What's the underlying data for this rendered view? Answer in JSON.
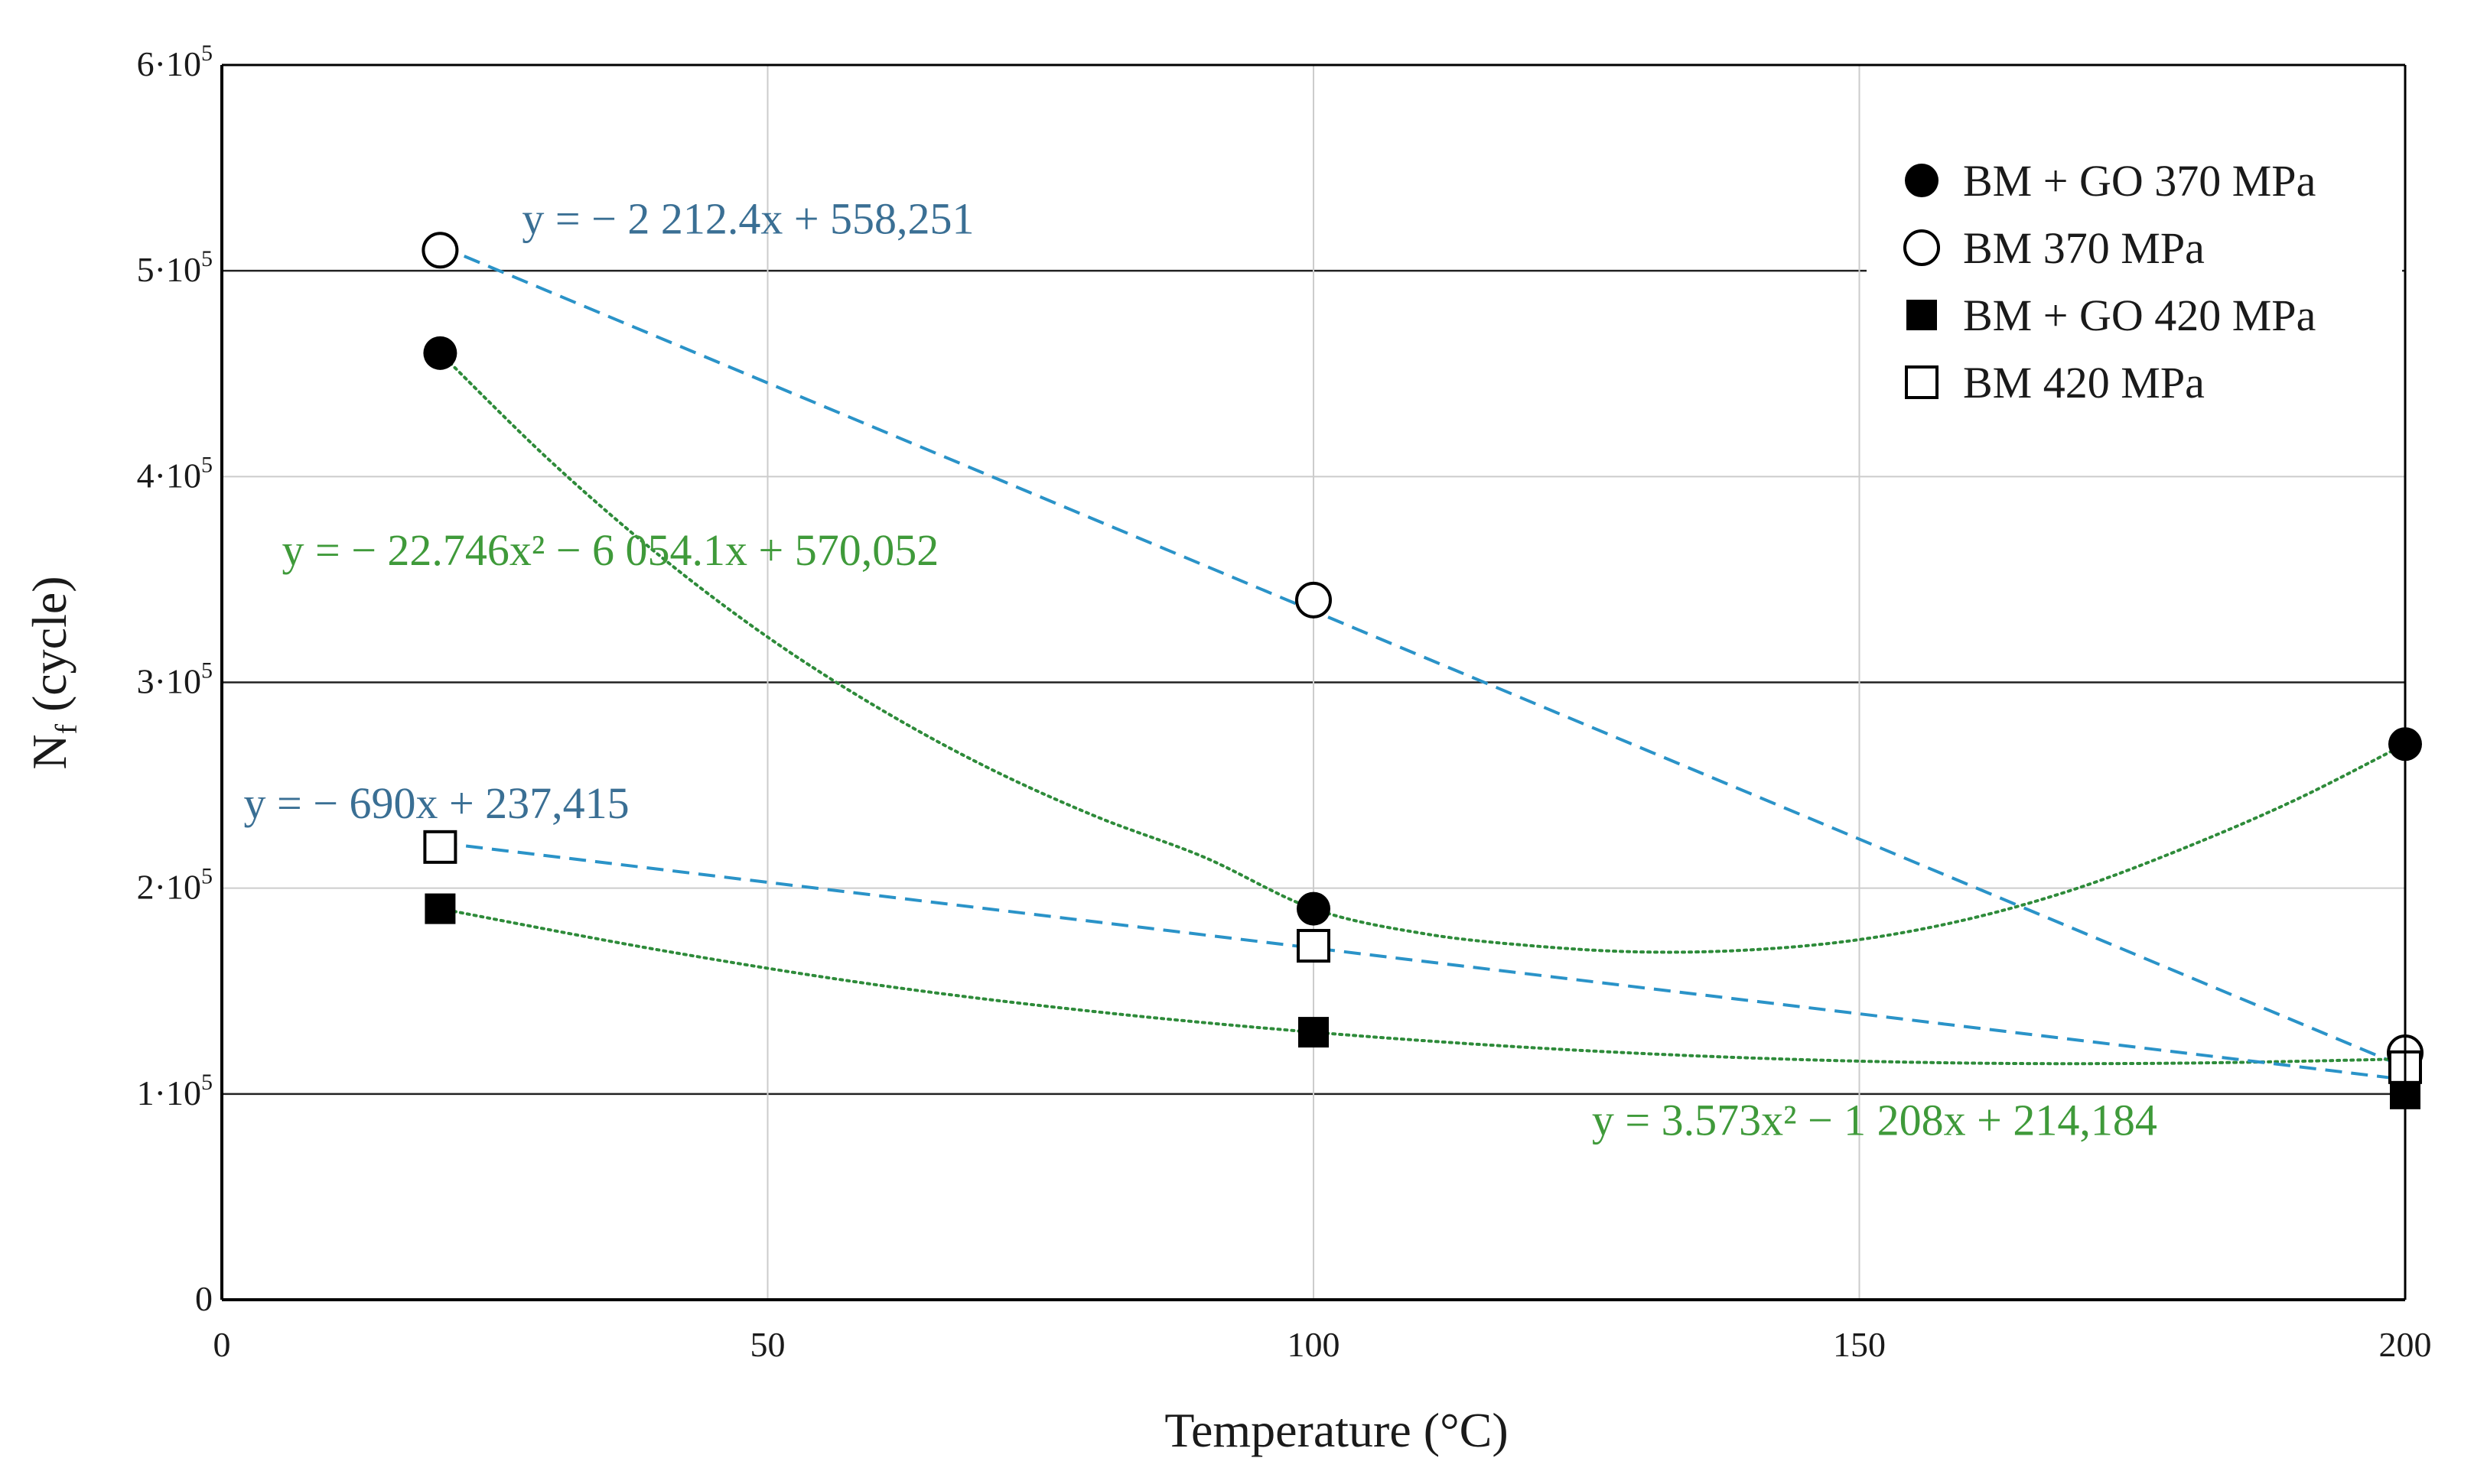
{
  "chart_data": {
    "type": "scatter",
    "xlabel": "Temperature (°C)",
    "ylabel": "N",
    "ylabel_sub": "f",
    "ylabel_suffix": " (cycle)",
    "xlim": [
      0,
      200
    ],
    "ylim": [
      0,
      600000
    ],
    "x_ticks": [
      {
        "value": 0,
        "label": "0"
      },
      {
        "value": 50,
        "label": "50"
      },
      {
        "value": 100,
        "label": "100"
      },
      {
        "value": 150,
        "label": "150"
      },
      {
        "value": 200,
        "label": "200"
      }
    ],
    "y_ticks": [
      {
        "value": 0,
        "label": "0",
        "exp": ""
      },
      {
        "value": 100000,
        "label": "1·10",
        "exp": "5"
      },
      {
        "value": 200000,
        "label": "2·10",
        "exp": "5"
      },
      {
        "value": 300000,
        "label": "3·10",
        "exp": "5"
      },
      {
        "value": 400000,
        "label": "4·10",
        "exp": "5"
      },
      {
        "value": 500000,
        "label": "5·10",
        "exp": "5"
      },
      {
        "value": 600000,
        "label": "6·10",
        "exp": "5"
      }
    ],
    "grid": {
      "horizontal": true,
      "vertical": true
    },
    "legend_position": "top-right",
    "series": [
      {
        "name": "BM + GO 370 MPa",
        "marker": "filled-circle",
        "x": [
          20,
          100,
          200
        ],
        "y": [
          460000,
          190000,
          270000
        ]
      },
      {
        "name": "BM 370 MPa",
        "marker": "open-circle",
        "x": [
          20,
          100,
          200
        ],
        "y": [
          510000,
          340000,
          120000
        ]
      },
      {
        "name": "BM + GO 420 MPa",
        "marker": "filled-square",
        "x": [
          20,
          100,
          200
        ],
        "y": [
          190000,
          130000,
          100000
        ]
      },
      {
        "name": "BM 420 MPa",
        "marker": "open-square",
        "x": [
          20,
          100,
          200
        ],
        "y": [
          220000,
          172000,
          113000
        ]
      }
    ],
    "trendlines": [
      {
        "series": "BM + GO 370 MPa",
        "kind": "poly2",
        "style": "dotted",
        "color": "#2e8b3a",
        "points": [
          [
            20,
            460000
          ],
          [
            30,
            408000
          ],
          [
            40,
            362000
          ],
          [
            50,
            322000
          ],
          [
            60,
            288000
          ],
          [
            70,
            259000
          ],
          [
            80,
            235000
          ],
          [
            90,
            215000
          ],
          [
            100,
            190000
          ],
          [
            110,
            178000
          ],
          [
            120,
            172000
          ],
          [
            130,
            169000
          ],
          [
            140,
            170000
          ],
          [
            150,
            175000
          ],
          [
            160,
            185000
          ],
          [
            170,
            200000
          ],
          [
            180,
            220000
          ],
          [
            190,
            243000
          ],
          [
            200,
            270000
          ]
        ]
      },
      {
        "series": "BM 370 MPa",
        "kind": "linear",
        "style": "dashed",
        "color": "#2a93c8",
        "points": [
          [
            20,
            512000
          ],
          [
            200,
            113000
          ]
        ]
      },
      {
        "series": "BM + GO 420 MPa",
        "kind": "poly2",
        "style": "dotted",
        "color": "#2e8b3a",
        "points": [
          [
            20,
            190000
          ],
          [
            40,
            170000
          ],
          [
            60,
            153000
          ],
          [
            80,
            140000
          ],
          [
            100,
            130000
          ],
          [
            120,
            122500
          ],
          [
            140,
            117500
          ],
          [
            160,
            115000
          ],
          [
            180,
            115000
          ],
          [
            200,
            117000
          ]
        ]
      },
      {
        "series": "BM 420 MPa",
        "kind": "linear",
        "style": "dashed",
        "color": "#2a93c8",
        "points": [
          [
            20,
            222000
          ],
          [
            200,
            107000
          ]
        ]
      }
    ],
    "equations": [
      {
        "text": "y = − 2 212.4x + 558,251",
        "color": "#3a6f94",
        "x": 27.5,
        "y": 518000
      },
      {
        "text": "y = − 22.746x² − 6 054.1x + 570,052",
        "color": "#3f9a3a",
        "x": 5.5,
        "y": 357000
      },
      {
        "text": "y = − 690x + 237,415",
        "color": "#3a6f94",
        "x": 2.0,
        "y": 234000
      },
      {
        "text": "y = 3.573x² − 1 208x + 214,184",
        "color": "#3f9a3a",
        "x": 125.5,
        "y": 80000
      }
    ]
  },
  "colors": {
    "linear_trend": "#2a93c8",
    "poly_trend": "#2e8b3a",
    "equation_linear": "#3a6f94",
    "equation_poly": "#3f9a3a",
    "axis": "#000000",
    "grid_major": "#222222",
    "grid_minor": "#cccccc"
  }
}
